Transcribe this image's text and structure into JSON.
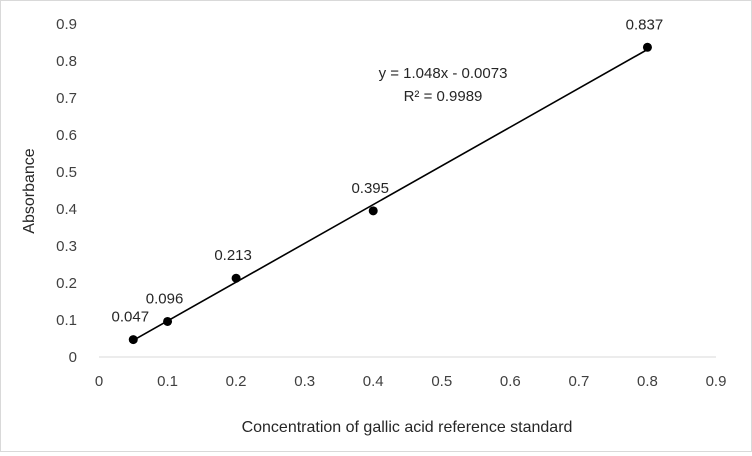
{
  "chart_data": {
    "type": "scatter",
    "title": "",
    "xlabel": "Concentration of gallic acid reference standard",
    "ylabel": "Absorbance",
    "xlim": [
      0,
      0.9
    ],
    "ylim": [
      0,
      0.9
    ],
    "x_ticks": [
      "0",
      "0.1",
      "0.2",
      "0.3",
      "0.4",
      "0.5",
      "0.6",
      "0.7",
      "0.8",
      "0.9"
    ],
    "y_ticks": [
      "0",
      "0.1",
      "0.2",
      "0.3",
      "0.4",
      "0.5",
      "0.6",
      "0.7",
      "0.8",
      "0.9"
    ],
    "grid": false,
    "legend": "none",
    "series": [
      {
        "points": [
          {
            "x": 0.05,
            "y": 0.047,
            "label": "0.047"
          },
          {
            "x": 0.1,
            "y": 0.096,
            "label": "0.096"
          },
          {
            "x": 0.2,
            "y": 0.213,
            "label": "0.213"
          },
          {
            "x": 0.4,
            "y": 0.395,
            "label": "0.395"
          },
          {
            "x": 0.8,
            "y": 0.837,
            "label": "0.837"
          }
        ]
      }
    ],
    "trendline": {
      "type": "linear",
      "slope": 1.048,
      "intercept": -0.0073,
      "equation": "y = 1.048x - 0.0073",
      "r_squared": "R² = 0.9989"
    },
    "colors": {
      "marker": "#000000",
      "trendline": "#000000",
      "axis": "#d9d9d9",
      "text": "#404040"
    }
  }
}
